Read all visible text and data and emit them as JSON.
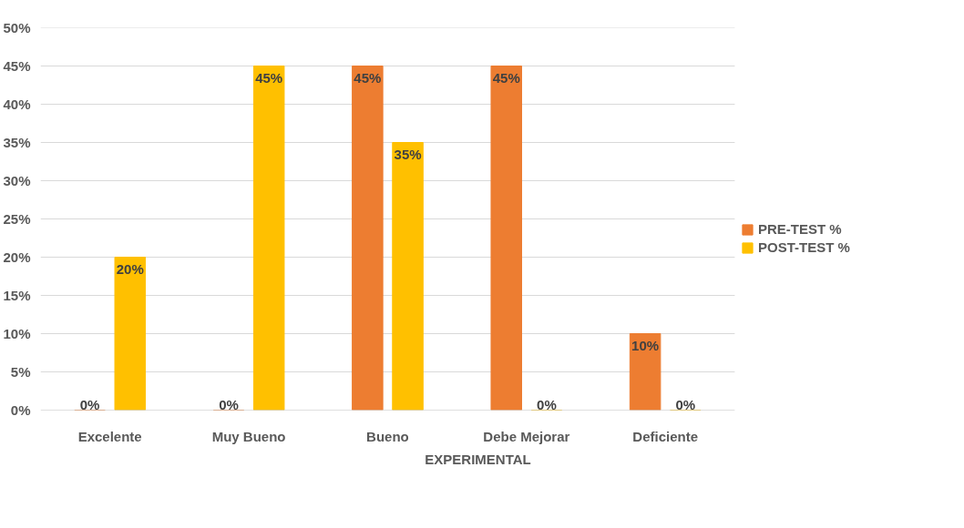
{
  "chart_data": {
    "type": "bar",
    "xlabel": "EXPERIMENTAL",
    "categories": [
      "Excelente",
      "Muy Bueno",
      "Bueno",
      "Debe Mejorar",
      "Deficiente"
    ],
    "series": [
      {
        "name": "PRE-TEST %",
        "color": "#ed7d31",
        "values": [
          0,
          0,
          45,
          45,
          10
        ],
        "value_labels": [
          "0%",
          "0%",
          "45%",
          "45%",
          "10%"
        ]
      },
      {
        "name": "POST-TEST %",
        "color": "#ffc000",
        "values": [
          20,
          45,
          35,
          0,
          0
        ],
        "value_labels": [
          "20%",
          "45%",
          "35%",
          "0%",
          "0%"
        ]
      }
    ],
    "ylim": [
      0,
      50
    ],
    "yticks": [
      {
        "value": 0,
        "label": "0%"
      },
      {
        "value": 5,
        "label": "5%"
      },
      {
        "value": 10,
        "label": "10%"
      },
      {
        "value": 15,
        "label": "15%"
      },
      {
        "value": 20,
        "label": "20%"
      },
      {
        "value": 25,
        "label": "25%"
      },
      {
        "value": 30,
        "label": "30%"
      },
      {
        "value": 35,
        "label": "35%"
      },
      {
        "value": 40,
        "label": "40%"
      },
      {
        "value": 45,
        "label": "45%"
      },
      {
        "value": 50,
        "label": "50%"
      }
    ],
    "grid": "y",
    "legend": "right"
  }
}
